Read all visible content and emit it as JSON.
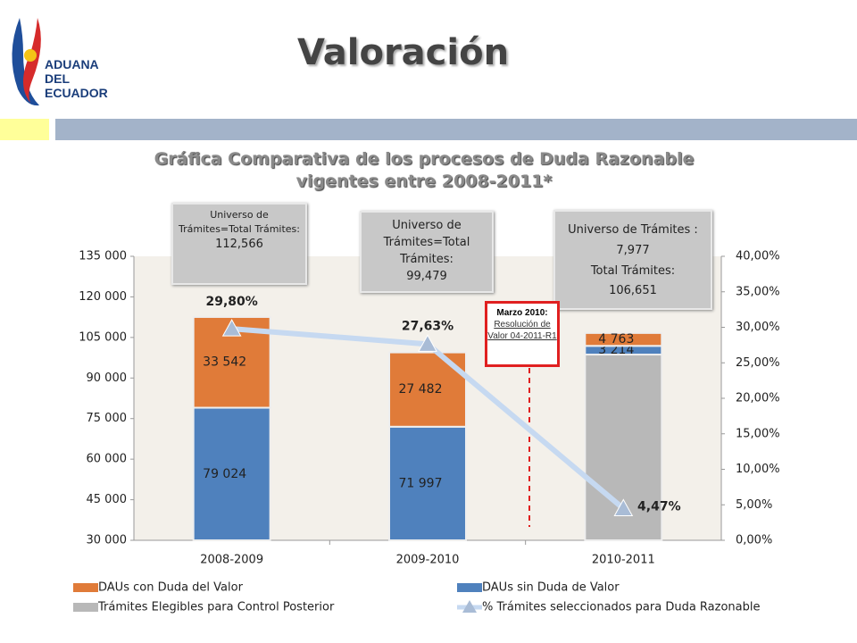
{
  "header": {
    "logo": [
      "ADUANA",
      "DEL",
      "ECUADOR"
    ],
    "title": "Valoración"
  },
  "chart_data": {
    "type": "bar",
    "title": "Gráfica Comparativa de los procesos de Duda Razonable vigentes entre 2008-2011*",
    "categories": [
      "2008-2009",
      "2009-2010",
      "2010-2011"
    ],
    "series": [
      {
        "name": "Trámites Elegibles para Control Posterior",
        "color": "#b8b8b8",
        "values": [
          null,
          null,
          98674
        ]
      },
      {
        "name": "DAUs sin Duda de Valor",
        "color": "#4f81bd",
        "values": [
          79024,
          71997,
          3214
        ],
        "value_labels": [
          "79 024",
          "71 997",
          "3 214"
        ]
      },
      {
        "name": "DAUs con Duda del Valor",
        "color": "#e07b39",
        "values": [
          33542,
          27482,
          4763
        ],
        "value_labels": [
          "33 542",
          "27 482",
          "4 763"
        ]
      },
      {
        "name": "% Trámites seleccionados para Duda Razonable",
        "type": "line",
        "axis": "y2",
        "color": "#c6d9f1",
        "values": [
          29.8,
          27.63,
          4.47
        ],
        "value_labels": [
          "29,80%",
          "27,63%",
          "4,47%"
        ]
      }
    ],
    "ylim": [
      30000,
      135000
    ],
    "yticks": [
      {
        "value": 30000,
        "label": "30 000"
      },
      {
        "value": 45000,
        "label": "45 000"
      },
      {
        "value": 60000,
        "label": "60 000"
      },
      {
        "value": 75000,
        "label": "75 000"
      },
      {
        "value": 90000,
        "label": "90 000"
      },
      {
        "value": 105000,
        "label": "105 000"
      },
      {
        "value": 120000,
        "label": "120 000"
      },
      {
        "value": 135000,
        "label": "135 000"
      }
    ],
    "y2lim": [
      0,
      40
    ],
    "y2ticks": [
      {
        "value": 0,
        "label": "0,00%"
      },
      {
        "value": 5,
        "label": "5,00%"
      },
      {
        "value": 10,
        "label": "10,00%"
      },
      {
        "value": 15,
        "label": "15,00%"
      },
      {
        "value": 20,
        "label": "20,00%"
      },
      {
        "value": 25,
        "label": "25,00%"
      },
      {
        "value": 30,
        "label": "30,00%"
      },
      {
        "value": 35,
        "label": "35,00%"
      },
      {
        "value": 40,
        "label": "40,00%"
      }
    ],
    "legend": "bottom",
    "annotations": [
      {
        "text": "Universo de Trámites=Total Trámites:",
        "value": "112,566"
      },
      {
        "text": "Universo de Trámites=Total Trámites:",
        "value": "99,479"
      },
      {
        "text": "Universo de Trámites :",
        "value": "7,977",
        "text2": "Total Trámites:",
        "value2": "106,651"
      }
    ],
    "note": {
      "title": "Marzo 2010:",
      "text": "Resolución de Valor 04-2011-R1"
    }
  }
}
